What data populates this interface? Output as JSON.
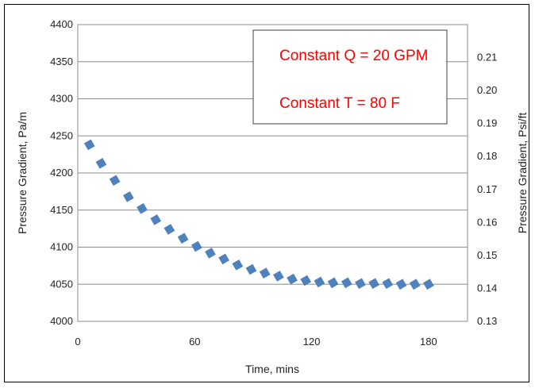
{
  "chart_data": {
    "type": "scatter",
    "xlabel": "Time, mins",
    "ylabel": "Pressure Gradient, Pa/m",
    "y2label": "Pressure Gradient, Psi/ft",
    "xlim": [
      0,
      200
    ],
    "ylim": [
      4000,
      4400
    ],
    "y2lim": [
      0.13,
      0.22
    ],
    "xticks": [
      "0",
      "60",
      "120",
      "180"
    ],
    "yticks": [
      "4000",
      "4050",
      "4100",
      "4150",
      "4200",
      "4250",
      "4300",
      "4350",
      "4400"
    ],
    "y2ticks": [
      "0.13",
      "0.14",
      "0.15",
      "0.16",
      "0.17",
      "0.18",
      "0.19",
      "0.20",
      "0.21"
    ],
    "grid": "horizontal",
    "annotations": [
      "Constant Q = 20 GPM",
      "Constant T = 80 F"
    ],
    "series": [
      {
        "color": "#4f81bd",
        "marker": "square",
        "x": [
          6,
          12,
          19,
          26,
          33,
          40,
          47,
          54,
          61,
          68,
          75,
          82,
          89,
          96,
          103,
          110,
          117,
          124,
          131,
          138,
          145,
          152,
          159,
          166,
          173,
          180
        ],
        "y": [
          4238,
          4213,
          4190,
          4168,
          4152,
          4137,
          4124,
          4112,
          4101,
          4092,
          4084,
          4076,
          4070,
          4065,
          4061,
          4057,
          4055,
          4053,
          4052,
          4052,
          4051,
          4051,
          4051,
          4050,
          4050,
          4050
        ]
      }
    ]
  }
}
